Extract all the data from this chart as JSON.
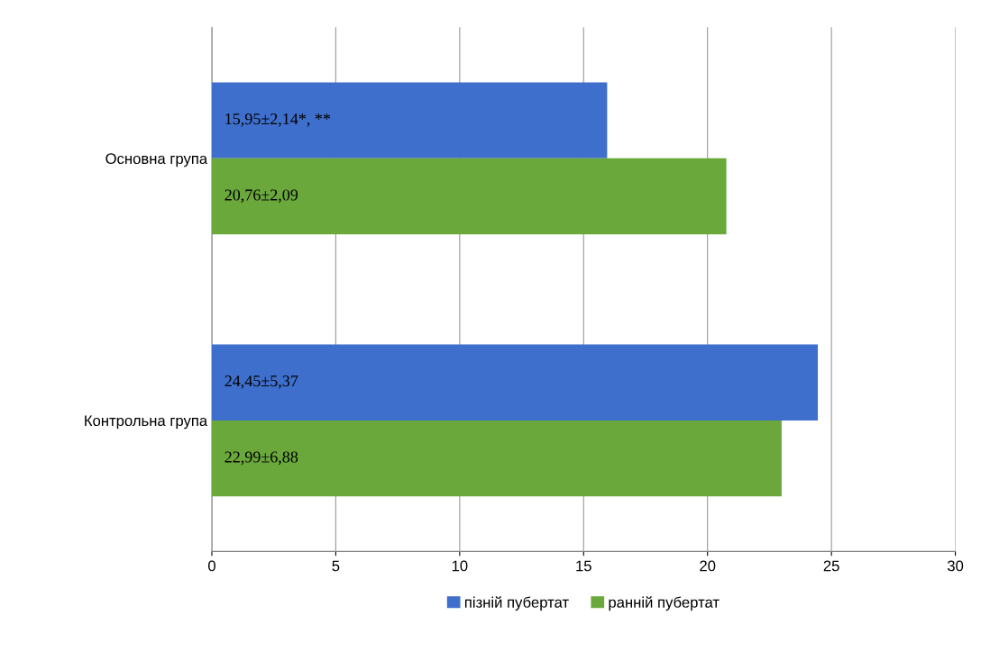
{
  "chart_data": {
    "type": "bar",
    "orientation": "horizontal",
    "categories": [
      "Основна група",
      "Контрольна група"
    ],
    "series": [
      {
        "name": "пізній пубертат",
        "color": "#3f6fcc",
        "values": [
          15.95,
          24.45
        ],
        "value_labels": [
          "15,95±2,14*, **",
          "24,45±5,37"
        ]
      },
      {
        "name": "ранній пубертат",
        "color": "#6aa83c",
        "values": [
          20.76,
          22.99
        ],
        "value_labels": [
          "20,76±2,09",
          "22,99±6,88"
        ]
      }
    ],
    "xlim": [
      0,
      30
    ],
    "xticks": [
      0,
      5,
      10,
      15,
      20,
      25,
      30
    ],
    "grid": "x",
    "legend": "bottom"
  }
}
